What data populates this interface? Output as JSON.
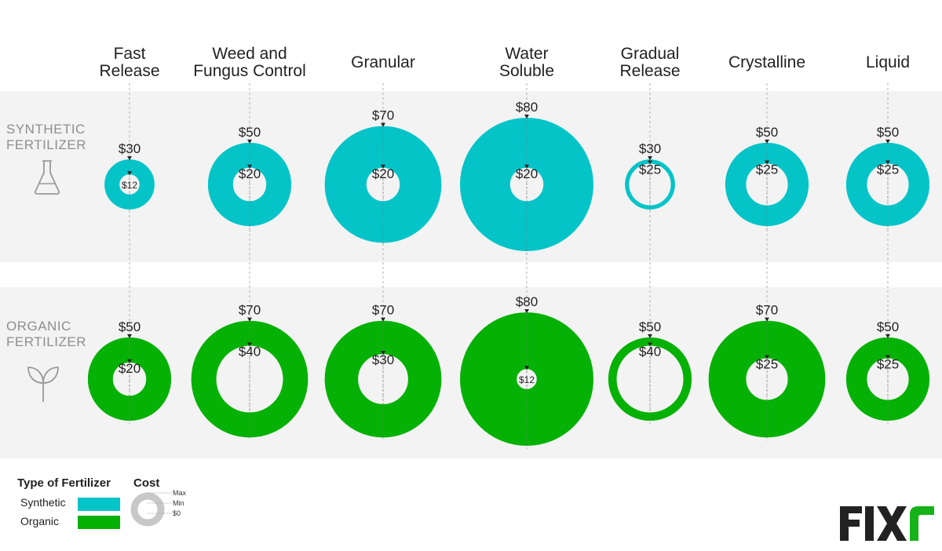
{
  "colors": {
    "synthetic": "#05c4c8",
    "organic": "#05b105",
    "band": "#f3f3f3",
    "logo_dark": "#222222",
    "logo_accent": "#16b219"
  },
  "chart_data": {
    "type": "donut-matrix",
    "title": "",
    "categories": [
      "Fast Release",
      "Weed and Fungus Control",
      "Granular",
      "Water Soluble",
      "Gradual Release",
      "Crystalline",
      "Liquid"
    ],
    "category_lines": [
      [
        "Fast",
        "Release"
      ],
      [
        "Weed and",
        "Fungus Control"
      ],
      [
        "Granular"
      ],
      [
        "Water",
        "Soluble"
      ],
      [
        "Gradual",
        "Release"
      ],
      [
        "Crystalline"
      ],
      [
        "Liquid"
      ]
    ],
    "series": [
      {
        "name": "Synthetic",
        "row_label": [
          "SYNTHETIC",
          "FERTILIZER"
        ],
        "icon": "flask-icon",
        "max_labels": [
          "$30",
          "$50",
          "$70",
          "$80",
          "$30",
          "$50",
          "$50"
        ],
        "min_labels": [
          "$12",
          "$20",
          "$20",
          "$20",
          "$25",
          "$25",
          "$25"
        ],
        "max": [
          30,
          50,
          70,
          80,
          30,
          50,
          50
        ],
        "min": [
          12,
          20,
          20,
          20,
          25,
          25,
          25
        ]
      },
      {
        "name": "Organic",
        "row_label": [
          "ORGANIC",
          "FERTILIZER"
        ],
        "icon": "sprout-icon",
        "max_labels": [
          "$50",
          "$70",
          "$70",
          "$80",
          "$50",
          "$70",
          "$50"
        ],
        "min_labels": [
          "$20",
          "$40",
          "$30",
          "$12",
          "$40",
          "$25",
          "$25"
        ],
        "max": [
          50,
          70,
          70,
          80,
          50,
          70,
          50
        ],
        "min": [
          20,
          40,
          30,
          12,
          40,
          25,
          25
        ]
      }
    ]
  },
  "legend": {
    "type_title": "Type of Fertilizer",
    "synthetic_label": "Synthetic",
    "organic_label": "Organic",
    "cost_title": "Cost",
    "max_label": "Max",
    "min_label": "Min",
    "zero_label": "$0"
  },
  "brand": {
    "name": "FIXR"
  }
}
